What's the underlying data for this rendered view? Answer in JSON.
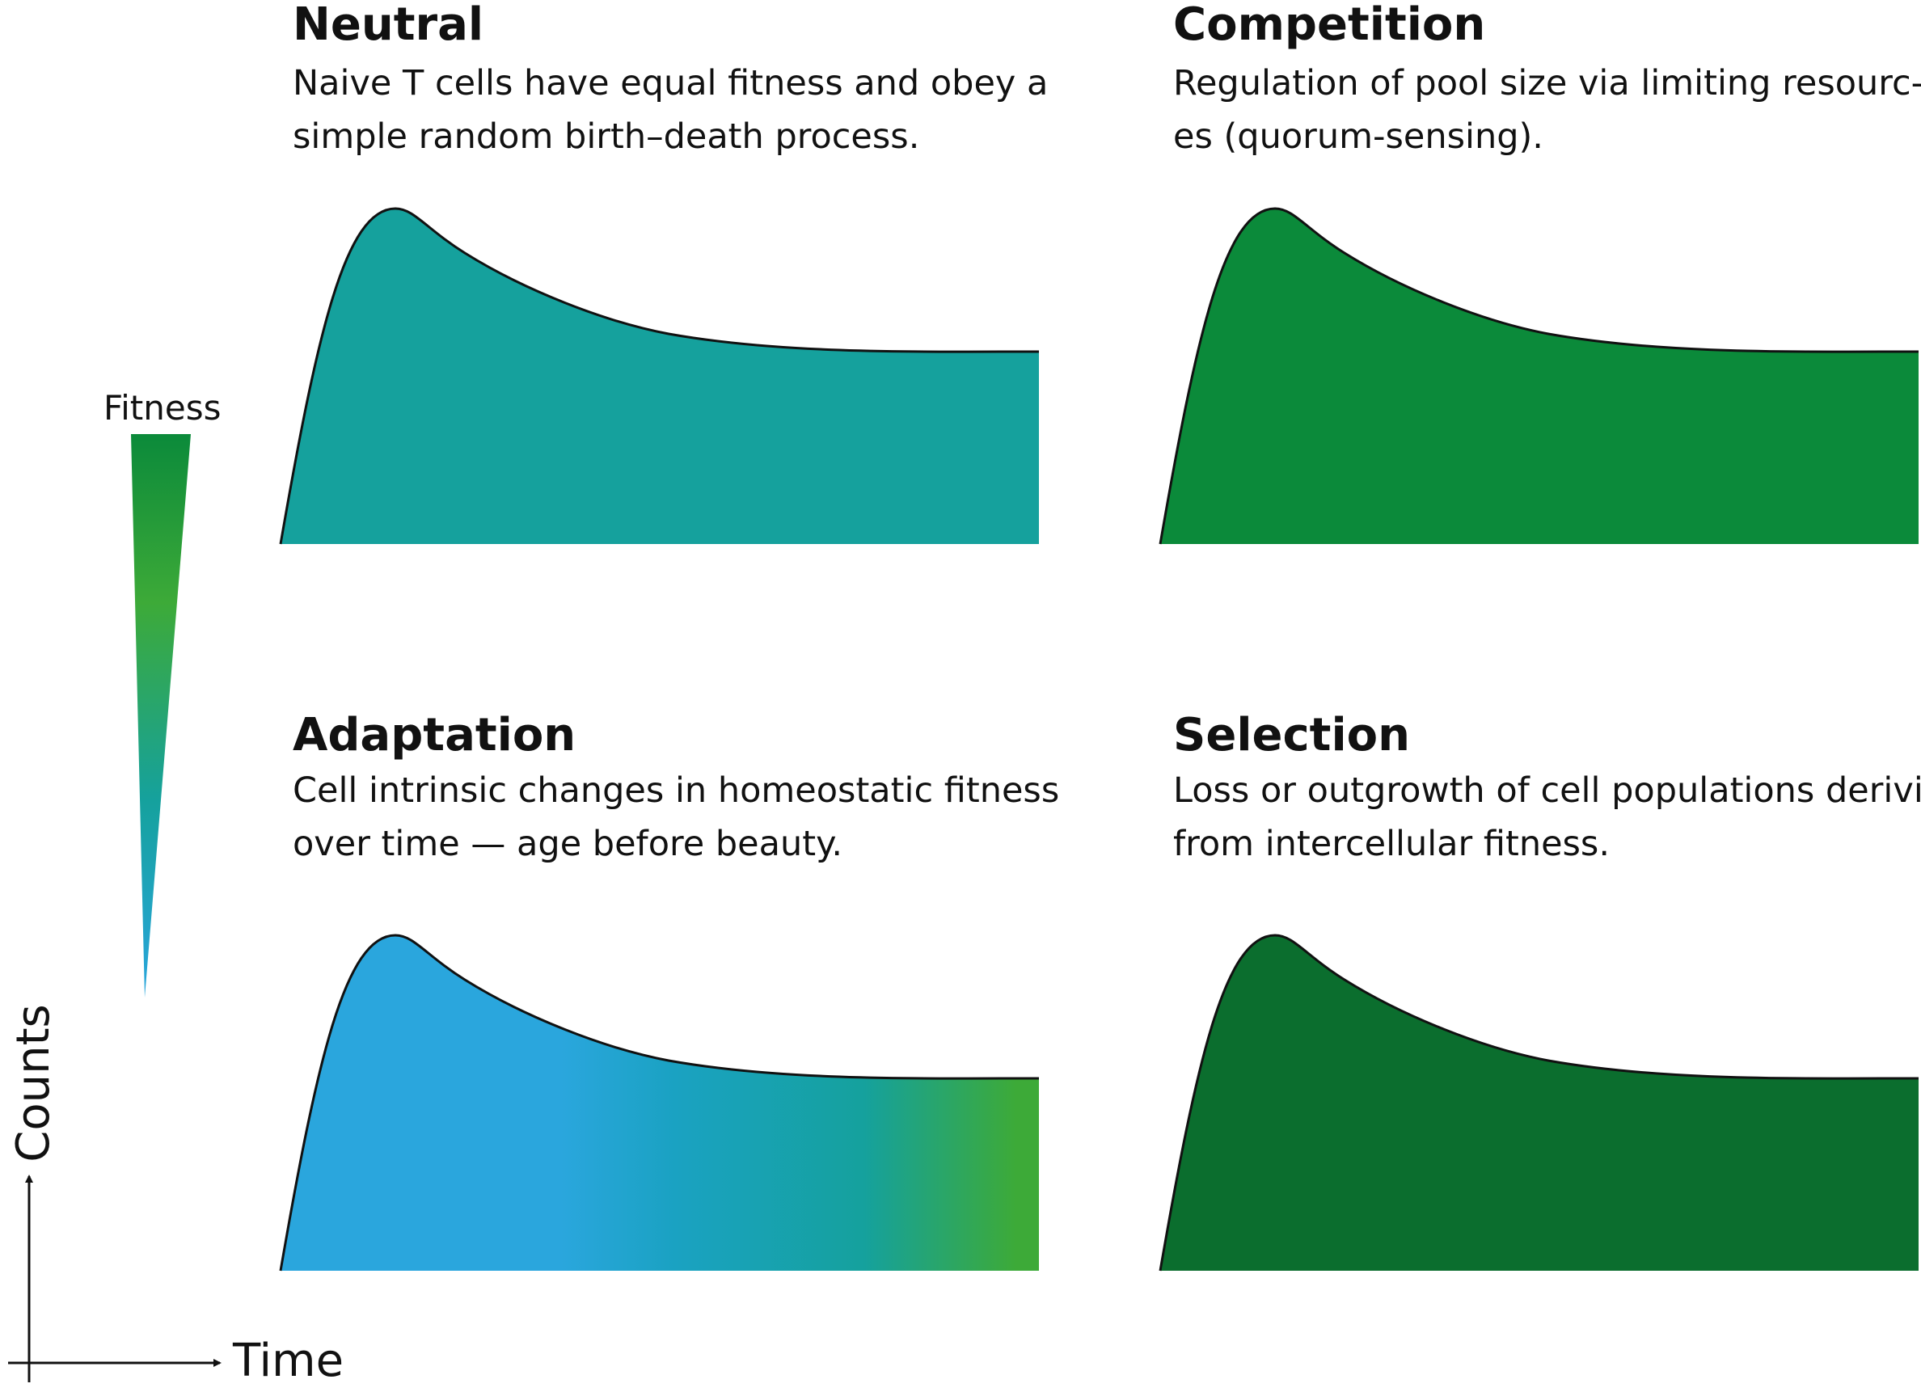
{
  "panels": {
    "neutral": {
      "title": "Neutral",
      "description": "Naive T cells have equal fitness and obey a simple random birth–death process."
    },
    "competition": {
      "title": "Competition",
      "description": "Regulation of pool size via limiting resourc- es (quorum-sensing)."
    },
    "adaptation": {
      "title": "Adaptation",
      "description": "Cell intrinsic changes in homeostatic fitness over time  — age before beauty."
    },
    "selection": {
      "title": "Selection",
      "description": "Loss or outgrowth of cell populations deriving from intercellular fitness."
    }
  },
  "legend": {
    "label": "Fitness"
  },
  "axes": {
    "y_label": "Counts",
    "x_label": "Time"
  },
  "colors": {
    "neutral_fill": "#15a19d",
    "low_fitness": "#2aa6dd",
    "mid_fitness": "#15a19d",
    "high_fitness": "#3daa38",
    "top_fitness": "#0b8a3a",
    "outline": "#111111"
  }
}
